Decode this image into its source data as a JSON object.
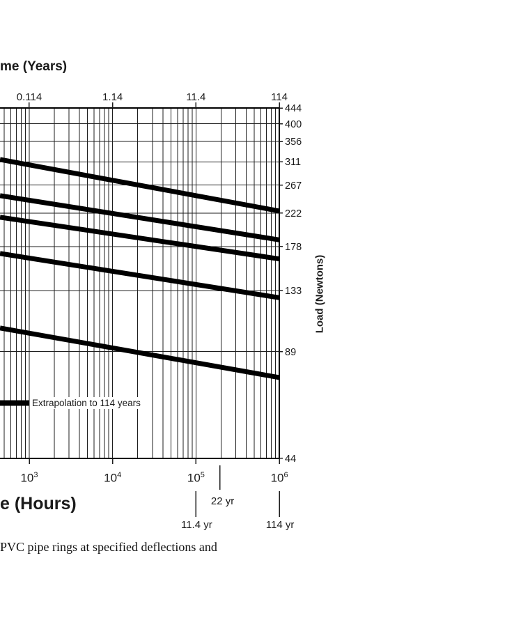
{
  "figure": {
    "top_axis_label": "me (Years)",
    "x_axis_label": "e (Hours)",
    "y_axis_label": "Load (Newtons)",
    "extrapolation_note": "Extrapolation to 114 years",
    "caption": "PVC pipe rings at specified deflections and"
  },
  "chart_data": {
    "type": "line",
    "title": "",
    "x_axis": {
      "label_visible": "e (Hours)",
      "unit": "hours",
      "scale": "log",
      "tick_exponents": [
        3,
        4,
        5,
        6
      ],
      "tick_base": "10",
      "visible_range_hours": [
        446,
        1000000
      ],
      "grid": "log minor gridlines (2-9) each decade"
    },
    "top_axis": {
      "label_visible": "me (Years)",
      "unit": "years",
      "tick_labels": [
        "0.114",
        "1.14",
        "11.4",
        "114"
      ],
      "tick_years": [
        0.114,
        1.14,
        11.4,
        114
      ],
      "hours_per_year": 8766
    },
    "y_axis": {
      "label": "Load (Newtons)",
      "unit": "newtons",
      "scale": "log",
      "tick_values": [
        444,
        400,
        356,
        311,
        267,
        222,
        178,
        133,
        89,
        44
      ],
      "visible_range": [
        44,
        444
      ],
      "grid": "horizontal gridline at every labeled load value",
      "position": "right"
    },
    "series": [
      {
        "name": "load-relaxation-curve-1",
        "points": [
          {
            "hours": 446,
            "newtons": 316
          },
          {
            "hours": 1000000,
            "newtons": 225
          }
        ]
      },
      {
        "name": "load-relaxation-curve-2",
        "points": [
          {
            "hours": 446,
            "newtons": 249
          },
          {
            "hours": 1000000,
            "newtons": 186
          }
        ]
      },
      {
        "name": "load-relaxation-curve-3",
        "points": [
          {
            "hours": 446,
            "newtons": 216
          },
          {
            "hours": 1000000,
            "newtons": 164
          }
        ]
      },
      {
        "name": "load-relaxation-curve-4",
        "points": [
          {
            "hours": 446,
            "newtons": 170
          },
          {
            "hours": 1000000,
            "newtons": 127
          }
        ]
      },
      {
        "name": "load-relaxation-curve-5",
        "points": [
          {
            "hours": 446,
            "newtons": 104
          },
          {
            "hours": 1000000,
            "newtons": 75
          }
        ]
      }
    ],
    "year_markers": [
      {
        "label": "22 yr",
        "years": 22,
        "row": "upper"
      },
      {
        "label": "11.4 yr",
        "years": 11.4,
        "row": "lower"
      },
      {
        "label": "114 yr",
        "years": 114,
        "row": "lower"
      }
    ],
    "annotations": [
      {
        "text": "Extrapolation to 114 years",
        "type": "legend-key"
      }
    ],
    "legend_position": "inside-lower-left",
    "colors": {
      "line": "#000000",
      "grid": "#1e1e1e",
      "axis": "#000000",
      "text": "#1a1a1a"
    }
  }
}
